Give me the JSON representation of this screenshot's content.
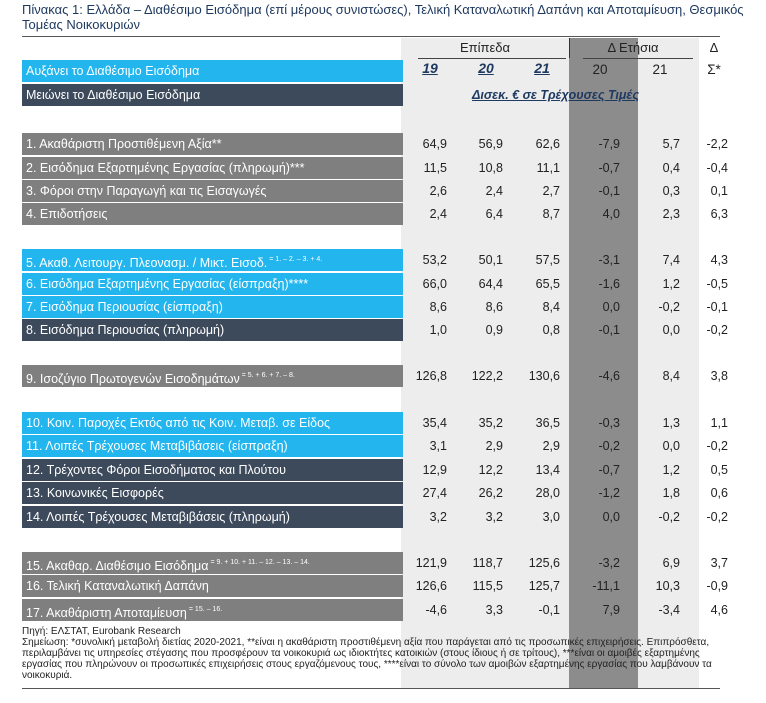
{
  "title": "Πίνακας 1: Ελλάδα – Διαθέσιμο Εισόδημα (επί μέρους συνιστώσες), Τελική Καταναλωτική Δαπάνη και Αποταμίευση, Θεσμικός Τομέας Νοικοκυριών",
  "header": {
    "levels": "Επίπεδα",
    "annual": "Δ Ετήσια",
    "delta": "Δ",
    "years": [
      "19",
      "20",
      "21"
    ],
    "annual_years": [
      "20",
      "21"
    ],
    "cum": "Σ*",
    "unit": "Δισεκ. € σε Τρέχουσες Τιμές"
  },
  "legend": {
    "increase": "Αυξάνει το Διαθέσιμο Εισόδημα",
    "decrease": "Μειώνει το Διαθέσιμο Εισόδημα"
  },
  "rows": [
    {
      "label": "1. Ακαθάριστη Προστιθέμενη Αξία**",
      "sup": "",
      "v": [
        "64,9",
        "56,9",
        "62,6",
        "-7,9",
        "5,7",
        "-2,2"
      ]
    },
    {
      "label": "2. Εισόδημα Εξαρτημένης Εργασίας (πληρωμή)***",
      "sup": "",
      "v": [
        "11,5",
        "10,8",
        "11,1",
        "-0,7",
        "0,4",
        "-0,4"
      ]
    },
    {
      "label": "3. Φόροι στην Παραγωγή και τις Εισαγωγές",
      "sup": "",
      "v": [
        "2,6",
        "2,4",
        "2,7",
        "-0,1",
        "0,3",
        "0,1"
      ]
    },
    {
      "label": "4. Επιδοτήσεις",
      "sup": "",
      "v": [
        "2,4",
        "6,4",
        "8,7",
        "4,0",
        "2,3",
        "6,3"
      ]
    },
    {
      "label": "5. Ακαθ. Λειτουργ. Πλεονασμ. / Μικτ. Εισοδ.",
      "sup": "= 1. – 2. – 3. + 4.",
      "v": [
        "53,2",
        "50,1",
        "57,5",
        "-3,1",
        "7,4",
        "4,3"
      ]
    },
    {
      "label": "6. Εισόδημα Εξαρτημένης Εργασίας (είσπραξη)****",
      "sup": "",
      "v": [
        "66,0",
        "64,4",
        "65,5",
        "-1,6",
        "1,2",
        "-0,5"
      ]
    },
    {
      "label": "7. Εισόδημα Περιουσίας (είσπραξη)",
      "sup": "",
      "v": [
        "8,6",
        "8,6",
        "8,4",
        "0,0",
        "-0,2",
        "-0,1"
      ]
    },
    {
      "label": "8. Εισόδημα Περιουσίας (πληρωμή)",
      "sup": "",
      "v": [
        "1,0",
        "0,9",
        "0,8",
        "-0,1",
        "0,0",
        "-0,2"
      ]
    },
    {
      "label": "9. Ισοζύγιο Πρωτογενών Εισοδημάτων",
      "sup": "= 5. + 6. + 7. – 8.",
      "v": [
        "126,8",
        "122,2",
        "130,6",
        "-4,6",
        "8,4",
        "3,8"
      ]
    },
    {
      "label": "10. Κοιν. Παροχές Εκτός από τις Κοιν. Μεταβ. σε Είδος",
      "sup": "",
      "v": [
        "35,4",
        "35,2",
        "36,5",
        "-0,3",
        "1,3",
        "1,1"
      ]
    },
    {
      "label": "11. Λοιπές Τρέχουσες Μεταβιβάσεις (είσπραξη)",
      "sup": "",
      "v": [
        "3,1",
        "2,9",
        "2,9",
        "-0,2",
        "0,0",
        "-0,2"
      ]
    },
    {
      "label": "12. Τρέχοντες Φόροι Εισοδήματος και Πλούτου",
      "sup": "",
      "v": [
        "12,9",
        "12,2",
        "13,4",
        "-0,7",
        "1,2",
        "0,5"
      ]
    },
    {
      "label": "13. Κοινωνικές Εισφορές",
      "sup": "",
      "v": [
        "27,4",
        "26,2",
        "28,0",
        "-1,2",
        "1,8",
        "0,6"
      ]
    },
    {
      "label": "14. Λοιπές Τρέχουσες Μεταβιβάσεις (πληρωμή)",
      "sup": "",
      "v": [
        "3,2",
        "3,2",
        "3,0",
        "0,0",
        "-0,2",
        "-0,2"
      ]
    },
    {
      "label": "15. Ακαθαρ. Διαθέσιμο Εισόδημα",
      "sup": "= 9. + 10. + 11. – 12. – 13. – 14.",
      "v": [
        "121,9",
        "118,7",
        "125,6",
        "-3,2",
        "6,9",
        "3,7"
      ]
    },
    {
      "label": "16. Τελική Καταναλωτική Δαπάνη",
      "sup": "",
      "v": [
        "126,6",
        "115,5",
        "125,7",
        "-11,1",
        "10,3",
        "-0,9"
      ]
    },
    {
      "label": "17. Ακαθάριστη Αποταμίευση",
      "sup": "= 15. – 16.",
      "v": [
        "-4,6",
        "3,3",
        "-0,1",
        "7,9",
        "-3,4",
        "4,6"
      ]
    }
  ],
  "source": "Πηγή: ΕΛΣΤΑΤ, Eurobank Research",
  "notes": "Σημείωση: *συνολική μεταβολή διετίας 2020-2021, **είναι η ακαθάριστη προστιθέμενη αξία που παράγεται από τις προσωπικές επιχειρήσεις. Επιπρόσθετα, περιλαμβάνει τις υπηρεσίες στέγασης που προσφέρουν τα νοικοκυριά ως ιδιοκτήτες κατοικιών (στους ίδιους ή σε τρίτους), ***είναι οι αμοιβές εξαρτημένης εργασίας που πληρώνουν οι προσωπικές επιχειρήσεις στους εργαζόμενους τους, ****είναι το σύνολο των αμοιβών εξαρτημένης εργασίας που λαμβάνουν τα νοικοκυριά."
}
